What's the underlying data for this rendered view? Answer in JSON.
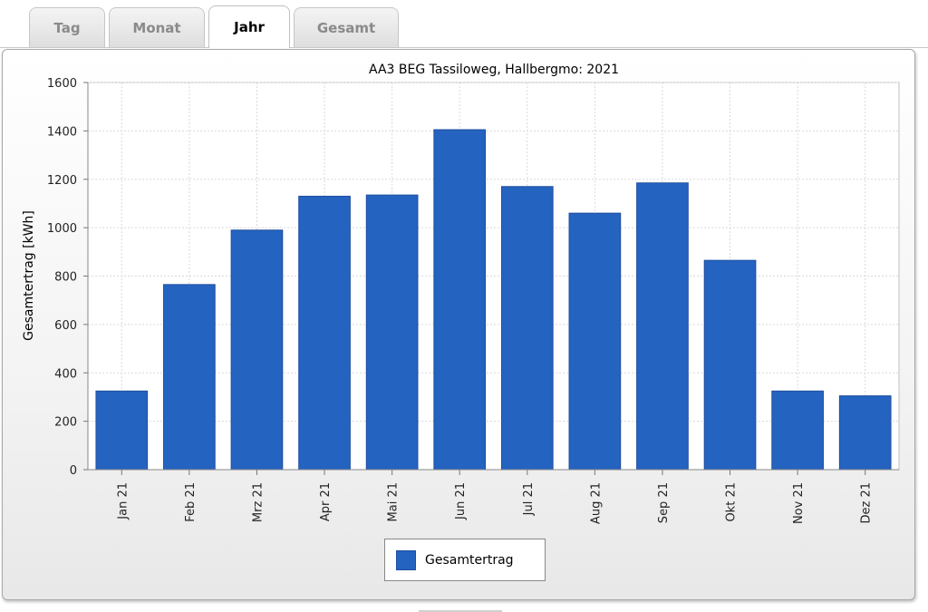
{
  "tabs": [
    {
      "label": "Tag",
      "active": false
    },
    {
      "label": "Monat",
      "active": false
    },
    {
      "label": "Jahr",
      "active": true
    },
    {
      "label": "Gesamt",
      "active": false
    }
  ],
  "colors": {
    "bar": "#2563c0",
    "bar_border": "#1e4d9e",
    "grid": "#d9d9d9"
  },
  "legend": {
    "label": "Gesamtertrag"
  },
  "chart_data": {
    "type": "bar",
    "title": "AA3 BEG Tassiloweg, Hallbergmo: 2021",
    "xlabel": "",
    "ylabel": "Gesamtertrag [kWh]",
    "ylim": [
      0,
      1600
    ],
    "yticks": [
      "0",
      "200",
      "400",
      "600",
      "800",
      "1000",
      "1200",
      "1400",
      "1600"
    ],
    "grid": true,
    "legend_position": "bottom-center",
    "categories": [
      "Jan 21",
      "Feb 21",
      "Mrz 21",
      "Apr 21",
      "Mai 21",
      "Jun 21",
      "Jul 21",
      "Aug 21",
      "Sep 21",
      "Okt 21",
      "Nov 21",
      "Dez 21"
    ],
    "series": [
      {
        "name": "Gesamtertrag",
        "values": [
          325,
          765,
          990,
          1130,
          1135,
          1405,
          1170,
          1060,
          1185,
          865,
          325,
          305
        ]
      }
    ]
  }
}
